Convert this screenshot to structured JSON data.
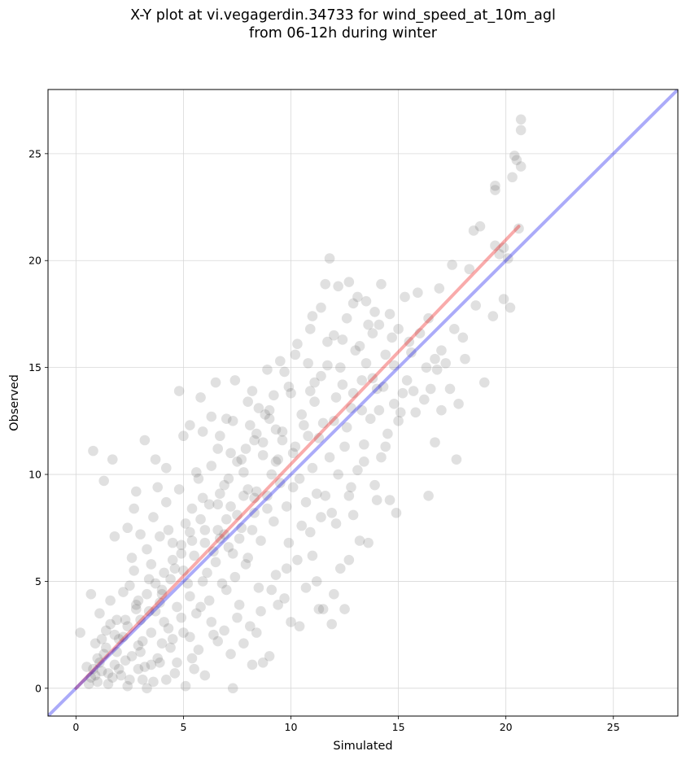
{
  "chart_data": {
    "type": "scatter",
    "title_line1": "X-Y plot at vi.vegagerdin.34733 for wind_speed_at_10m_agl",
    "title_line2": "from 06-12h during winter",
    "xlabel": "Simulated",
    "ylabel": "Observed",
    "xlim": [
      -1.3,
      28
    ],
    "ylim": [
      -1.3,
      28
    ],
    "xticks": [
      0,
      5,
      10,
      15,
      20,
      25
    ],
    "yticks": [
      0,
      5,
      10,
      15,
      20,
      25
    ],
    "grid": true,
    "point_color": "#555555",
    "identity_line": {
      "color": "#0000ee",
      "from": [
        -1.3,
        -1.3
      ],
      "to": [
        28,
        28
      ]
    },
    "fit_line": {
      "color": "#ee0000",
      "from": [
        0,
        0
      ],
      "to": [
        20.6,
        21.6
      ]
    },
    "points": [
      [
        0.8,
        11.1
      ],
      [
        1.3,
        9.7
      ],
      [
        1.7,
        10.7
      ],
      [
        2.8,
        9.2
      ],
      [
        2.7,
        8.4
      ],
      [
        3.2,
        11.6
      ],
      [
        3.7,
        10.7
      ],
      [
        1.8,
        7.1
      ],
      [
        2.4,
        7.5
      ],
      [
        0.2,
        2.6
      ],
      [
        0.7,
        4.4
      ],
      [
        7.3,
        0.0
      ],
      [
        6.0,
        0.6
      ],
      [
        8.2,
        1.1
      ],
      [
        9.0,
        1.5
      ],
      [
        8.7,
        1.2
      ],
      [
        0.5,
        1.0
      ],
      [
        0.7,
        0.5
      ],
      [
        1.0,
        0.3
      ],
      [
        1.2,
        0.8
      ],
      [
        1.5,
        0.2
      ],
      [
        1.8,
        1.1
      ],
      [
        2.1,
        0.6
      ],
      [
        2.4,
        0.1
      ],
      [
        2.6,
        1.5
      ],
      [
        2.9,
        0.9
      ],
      [
        3.3,
        0.0
      ],
      [
        3.6,
        0.3
      ],
      [
        3.9,
        1.2
      ],
      [
        4.2,
        0.4
      ],
      [
        4.6,
        0.7
      ],
      [
        5.1,
        0.1
      ],
      [
        5.5,
        0.9
      ],
      [
        0.9,
        2.1
      ],
      [
        1.1,
        3.5
      ],
      [
        1.4,
        2.7
      ],
      [
        1.6,
        4.1
      ],
      [
        1.9,
        3.2
      ],
      [
        2.2,
        2.4
      ],
      [
        2.5,
        4.8
      ],
      [
        2.8,
        3.9
      ],
      [
        3.1,
        2.2
      ],
      [
        3.4,
        5.1
      ],
      [
        3.7,
        3.6
      ],
      [
        4.0,
        4.4
      ],
      [
        4.3,
        2.8
      ],
      [
        4.6,
        5.6
      ],
      [
        4.9,
        3.3
      ],
      [
        5.2,
        4.9
      ],
      [
        5.5,
        6.2
      ],
      [
        5.8,
        3.8
      ],
      [
        6.1,
        5.4
      ],
      [
        6.4,
        2.5
      ],
      [
        6.7,
        7.0
      ],
      [
        7.0,
        4.6
      ],
      [
        7.3,
        6.3
      ],
      [
        7.6,
        3.9
      ],
      [
        7.9,
        5.8
      ],
      [
        8.2,
        7.4
      ],
      [
        8.5,
        4.7
      ],
      [
        2.6,
        6.1
      ],
      [
        3.0,
        7.2
      ],
      [
        3.3,
        6.5
      ],
      [
        3.6,
        8.0
      ],
      [
        3.9,
        7.1
      ],
      [
        4.2,
        8.7
      ],
      [
        4.5,
        6.8
      ],
      [
        4.8,
        9.3
      ],
      [
        5.1,
        7.7
      ],
      [
        5.4,
        8.4
      ],
      [
        5.7,
        9.8
      ],
      [
        6.0,
        7.4
      ],
      [
        6.3,
        10.4
      ],
      [
        6.6,
        8.6
      ],
      [
        6.9,
        9.5
      ],
      [
        7.2,
        11.0
      ],
      [
        7.5,
        8.1
      ],
      [
        7.8,
        10.1
      ],
      [
        8.1,
        12.3
      ],
      [
        8.4,
        9.2
      ],
      [
        8.7,
        11.5
      ],
      [
        9.0,
        13.0
      ],
      [
        9.3,
        10.6
      ],
      [
        9.6,
        12.0
      ],
      [
        9.9,
        14.1
      ],
      [
        10.2,
        11.3
      ],
      [
        10.5,
        12.8
      ],
      [
        10.8,
        15.2
      ],
      [
        11.1,
        13.4
      ],
      [
        11.4,
        14.6
      ],
      [
        11.7,
        16.2
      ],
      [
        12.0,
        12.5
      ],
      [
        12.3,
        15.0
      ],
      [
        12.6,
        17.3
      ],
      [
        12.9,
        13.8
      ],
      [
        13.2,
        16.0
      ],
      [
        13.5,
        18.1
      ],
      [
        13.8,
        14.5
      ],
      [
        14.1,
        17.0
      ],
      [
        14.4,
        15.6
      ],
      [
        5.0,
        11.8
      ],
      [
        5.3,
        12.3
      ],
      [
        5.8,
        13.6
      ],
      [
        6.3,
        12.7
      ],
      [
        7.0,
        12.6
      ],
      [
        7.4,
        14.4
      ],
      [
        8.5,
        13.1
      ],
      [
        8.9,
        14.9
      ],
      [
        9.5,
        15.3
      ],
      [
        10.3,
        16.1
      ],
      [
        11.0,
        17.4
      ],
      [
        11.6,
        18.9
      ],
      [
        12.2,
        18.8
      ],
      [
        12.7,
        19.0
      ],
      [
        11.8,
        20.1
      ],
      [
        13.1,
        18.3
      ],
      [
        13.9,
        17.6
      ],
      [
        14.2,
        18.9
      ],
      [
        15.3,
        18.3
      ],
      [
        15.9,
        18.5
      ],
      [
        16.4,
        17.3
      ],
      [
        16.9,
        18.7
      ],
      [
        17.5,
        19.8
      ],
      [
        18.3,
        19.6
      ],
      [
        18.5,
        21.4
      ],
      [
        18.8,
        21.6
      ],
      [
        19.5,
        20.7
      ],
      [
        19.7,
        20.3
      ],
      [
        19.9,
        20.6
      ],
      [
        20.1,
        20.1
      ],
      [
        20.6,
        21.5
      ],
      [
        19.5,
        23.3
      ],
      [
        19.5,
        23.5
      ],
      [
        20.3,
        23.9
      ],
      [
        20.4,
        24.9
      ],
      [
        20.5,
        24.7
      ],
      [
        20.7,
        24.4
      ],
      [
        20.7,
        26.1
      ],
      [
        20.7,
        26.6
      ],
      [
        19.9,
        18.2
      ],
      [
        20.2,
        17.8
      ],
      [
        19.0,
        14.3
      ],
      [
        19.4,
        17.4
      ],
      [
        18.1,
        15.4
      ],
      [
        17.8,
        13.3
      ],
      [
        17.4,
        14.0
      ],
      [
        17.7,
        10.7
      ],
      [
        16.8,
        14.9
      ],
      [
        16.5,
        14.0
      ],
      [
        16.2,
        13.5
      ],
      [
        15.8,
        12.9
      ],
      [
        15.4,
        14.4
      ],
      [
        15.1,
        12.9
      ],
      [
        14.8,
        13.3
      ],
      [
        14.5,
        11.9
      ],
      [
        14.2,
        10.8
      ],
      [
        14.0,
        8.8
      ],
      [
        14.6,
        8.8
      ],
      [
        14.9,
        8.2
      ],
      [
        16.4,
        9.0
      ],
      [
        16.7,
        11.5
      ],
      [
        17.0,
        13.0
      ],
      [
        13.7,
        12.6
      ],
      [
        13.4,
        11.4
      ],
      [
        13.1,
        10.2
      ],
      [
        12.8,
        9.4
      ],
      [
        12.5,
        11.3
      ],
      [
        12.2,
        10.0
      ],
      [
        11.9,
        8.2
      ],
      [
        11.6,
        9.0
      ],
      [
        11.3,
        11.7
      ],
      [
        11.0,
        10.3
      ],
      [
        10.7,
        8.7
      ],
      [
        10.4,
        9.8
      ],
      [
        10.1,
        11.0
      ],
      [
        9.8,
        8.5
      ],
      [
        9.5,
        9.6
      ],
      [
        9.2,
        7.8
      ],
      [
        8.9,
        9.0
      ],
      [
        8.6,
        6.9
      ],
      [
        8.3,
        8.2
      ],
      [
        8.0,
        6.1
      ],
      [
        7.7,
        7.5
      ],
      [
        7.4,
        5.2
      ],
      [
        7.1,
        6.6
      ],
      [
        6.8,
        4.9
      ],
      [
        6.5,
        5.9
      ],
      [
        6.2,
        4.1
      ],
      [
        5.9,
        5.0
      ],
      [
        5.6,
        3.5
      ],
      [
        5.3,
        4.3
      ],
      [
        5.0,
        2.6
      ],
      [
        4.7,
        3.8
      ],
      [
        4.4,
        1.9
      ],
      [
        4.1,
        3.1
      ],
      [
        3.8,
        1.4
      ],
      [
        3.5,
        2.6
      ],
      [
        3.2,
        1.0
      ],
      [
        2.9,
        2.0
      ],
      [
        9.4,
        3.9
      ],
      [
        9.7,
        4.2
      ],
      [
        10.0,
        3.1
      ],
      [
        10.4,
        2.9
      ],
      [
        10.7,
        4.7
      ],
      [
        11.0,
        6.2
      ],
      [
        11.2,
        5.0
      ],
      [
        11.5,
        3.7
      ],
      [
        11.9,
        3.0
      ],
      [
        12.0,
        4.4
      ],
      [
        12.3,
        5.6
      ],
      [
        12.5,
        3.7
      ],
      [
        12.7,
        6.0
      ],
      [
        12.9,
        8.1
      ],
      [
        13.2,
        6.9
      ],
      [
        13.6,
        6.8
      ],
      [
        13.9,
        9.5
      ],
      [
        11.3,
        3.7
      ],
      [
        9.0,
        12.6
      ],
      [
        8.2,
        13.9
      ],
      [
        7.7,
        10.7
      ],
      [
        6.7,
        11.8
      ],
      [
        5.9,
        12.0
      ],
      [
        4.8,
        13.9
      ],
      [
        4.2,
        10.3
      ],
      [
        3.8,
        9.4
      ],
      [
        6.5,
        14.3
      ],
      [
        10.6,
        12.3
      ],
      [
        12.4,
        14.2
      ],
      [
        13.0,
        15.8
      ],
      [
        14.7,
        16.4
      ],
      [
        15.6,
        15.7
      ],
      [
        16.0,
        16.6
      ],
      [
        16.7,
        15.4
      ],
      [
        17.2,
        15.2
      ],
      [
        14.0,
        14.0
      ],
      [
        13.3,
        13.0
      ],
      [
        9.1,
        10.0
      ],
      [
        8.0,
        9.3
      ],
      [
        7.0,
        7.9
      ],
      [
        6.0,
        6.8
      ],
      [
        5.0,
        5.5
      ],
      [
        4.0,
        4.6
      ],
      [
        3.0,
        3.2
      ],
      [
        2.0,
        2.3
      ],
      [
        1.0,
        1.4
      ],
      [
        15.2,
        13.8
      ],
      [
        13.6,
        17.0
      ],
      [
        12.0,
        16.5
      ],
      [
        11.1,
        14.3
      ],
      [
        10.0,
        13.8
      ],
      [
        9.3,
        12.1
      ],
      [
        8.7,
        10.9
      ],
      [
        8.3,
        11.6
      ],
      [
        7.8,
        9.0
      ],
      [
        7.2,
        8.5
      ],
      [
        6.6,
        7.4
      ],
      [
        5.9,
        8.9
      ],
      [
        5.4,
        6.9
      ],
      [
        4.9,
        6.3
      ],
      [
        4.4,
        5.1
      ],
      [
        3.9,
        4.0
      ],
      [
        3.4,
        3.6
      ],
      [
        2.9,
        4.1
      ],
      [
        2.4,
        2.9
      ],
      [
        1.9,
        1.7
      ],
      [
        1.4,
        1.9
      ],
      [
        0.9,
        0.6
      ],
      [
        1.2,
        2.3
      ],
      [
        1.7,
        0.5
      ],
      [
        2.3,
        1.3
      ],
      [
        3.1,
        0.4
      ],
      [
        4.0,
        2.1
      ],
      [
        4.7,
        1.2
      ],
      [
        5.3,
        2.4
      ],
      [
        5.7,
        1.8
      ],
      [
        6.3,
        3.1
      ],
      [
        6.9,
        2.7
      ],
      [
        7.5,
        3.3
      ],
      [
        8.1,
        2.9
      ],
      [
        8.6,
        3.6
      ],
      [
        9.3,
        5.3
      ],
      [
        9.9,
        6.8
      ],
      [
        10.5,
        7.6
      ],
      [
        11.2,
        9.1
      ],
      [
        11.8,
        10.8
      ],
      [
        12.6,
        12.2
      ],
      [
        13.3,
        14.4
      ],
      [
        14.1,
        13.0
      ],
      [
        14.8,
        15.1
      ],
      [
        15.5,
        16.2
      ],
      [
        12.9,
        18.0
      ],
      [
        11.4,
        17.8
      ],
      [
        10.9,
        16.8
      ],
      [
        10.2,
        15.6
      ],
      [
        9.7,
        14.8
      ],
      [
        9.2,
        13.7
      ],
      [
        8.8,
        12.8
      ],
      [
        8.4,
        11.9
      ],
      [
        7.9,
        11.2
      ],
      [
        7.5,
        10.6
      ],
      [
        7.1,
        9.8
      ],
      [
        6.7,
        9.1
      ],
      [
        6.2,
        8.6
      ],
      [
        5.8,
        7.9
      ],
      [
        5.3,
        7.3
      ],
      [
        4.9,
        6.7
      ],
      [
        4.5,
        6.0
      ],
      [
        4.1,
        5.4
      ],
      [
        3.7,
        4.9
      ],
      [
        3.3,
        4.4
      ],
      [
        2.8,
        3.7
      ],
      [
        2.3,
        3.2
      ],
      [
        1.8,
        2.5
      ],
      [
        1.3,
        1.6
      ],
      [
        0.8,
        0.9
      ],
      [
        6.4,
        6.4
      ],
      [
        6.9,
        7.2
      ],
      [
        7.6,
        7.0
      ],
      [
        8.3,
        8.9
      ],
      [
        8.9,
        8.4
      ],
      [
        9.4,
        10.7
      ],
      [
        10.1,
        9.4
      ],
      [
        10.8,
        11.8
      ],
      [
        11.5,
        12.4
      ],
      [
        12.1,
        13.6
      ],
      [
        12.8,
        13.1
      ],
      [
        13.5,
        15.2
      ],
      [
        14.3,
        14.1
      ],
      [
        15.0,
        16.8
      ],
      [
        3.5,
        5.8
      ],
      [
        4.3,
        7.4
      ],
      [
        2.2,
        4.5
      ],
      [
        1.6,
        3.0
      ],
      [
        2.7,
        5.5
      ],
      [
        5.6,
        10.1
      ],
      [
        6.6,
        11.2
      ],
      [
        7.3,
        12.5
      ],
      [
        8.0,
        13.4
      ],
      [
        9.6,
        11.6
      ],
      [
        10.9,
        13.9
      ],
      [
        11.7,
        15.1
      ],
      [
        12.4,
        16.3
      ],
      [
        13.8,
        16.6
      ],
      [
        14.6,
        17.5
      ],
      [
        0.6,
        0.2
      ],
      [
        1.1,
        1.2
      ],
      [
        1.5,
        0.7
      ],
      [
        2.0,
        0.9
      ],
      [
        2.5,
        0.4
      ],
      [
        3.0,
        1.7
      ],
      [
        3.5,
        1.1
      ],
      [
        4.5,
        2.3
      ],
      [
        5.4,
        1.4
      ],
      [
        6.6,
        2.2
      ],
      [
        7.2,
        1.6
      ],
      [
        7.8,
        2.1
      ],
      [
        8.4,
        2.6
      ],
      [
        9.1,
        4.6
      ],
      [
        9.8,
        5.6
      ],
      [
        10.3,
        6.0
      ],
      [
        10.9,
        7.3
      ],
      [
        11.4,
        8.0
      ],
      [
        12.1,
        7.7
      ],
      [
        12.7,
        9.0
      ],
      [
        13.4,
        10.6
      ],
      [
        14.4,
        11.3
      ],
      [
        15.0,
        12.5
      ],
      [
        15.7,
        13.9
      ],
      [
        16.3,
        15.0
      ],
      [
        17.0,
        15.8
      ],
      [
        17.6,
        16.8
      ],
      [
        18.0,
        16.4
      ],
      [
        18.6,
        17.9
      ]
    ]
  }
}
